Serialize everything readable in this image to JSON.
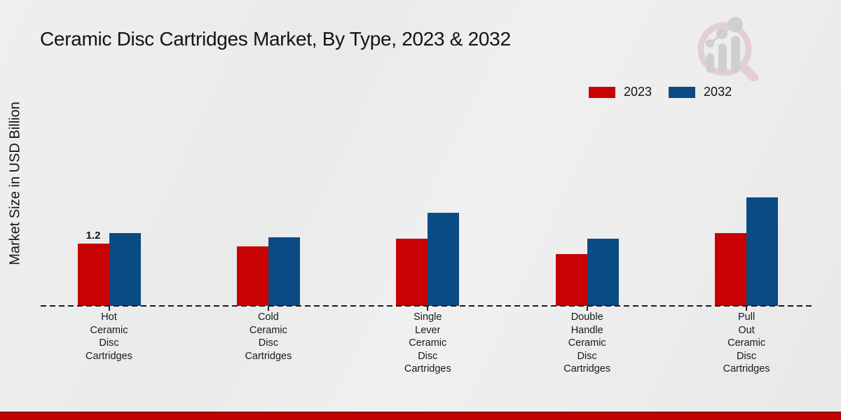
{
  "header": {
    "title": "Ceramic Disc Cartridges Market, By Type, 2023 & 2032"
  },
  "chart_data": {
    "type": "bar",
    "title": "Ceramic Disc Cartridges Market, By Type, 2023 & 2032",
    "ylabel": "Market Size in USD Billion",
    "xlabel": "",
    "categories": [
      "Hot Ceramic Disc Cartridges",
      "Cold Ceramic Disc Cartridges",
      "Single Lever Ceramic Disc Cartridges",
      "Double Handle Ceramic Disc Cartridges",
      "Pull Out Ceramic Disc Cartridges"
    ],
    "series": [
      {
        "name": "2023",
        "color": "#c80202",
        "values": [
          1.2,
          1.15,
          1.3,
          1.0,
          1.4
        ]
      },
      {
        "name": "2032",
        "color": "#0b4b84",
        "values": [
          1.4,
          1.32,
          1.8,
          1.3,
          2.1
        ]
      }
    ],
    "value_labels": [
      {
        "series": "2023",
        "category": "Hot Ceramic Disc Cartridges",
        "text": "1.2"
      }
    ],
    "ylim": [
      0,
      2.5
    ],
    "grid": false,
    "legend_position": "top-right",
    "baseline_style": "dashed"
  },
  "legend": {
    "items": [
      {
        "label": "2023",
        "color": "#c80202"
      },
      {
        "label": "2032",
        "color": "#0b4b84"
      }
    ]
  },
  "footer": {
    "color": "#c20101",
    "edge_color": "#8f0000"
  },
  "logo": {
    "name": "market-research-future-watermark"
  }
}
